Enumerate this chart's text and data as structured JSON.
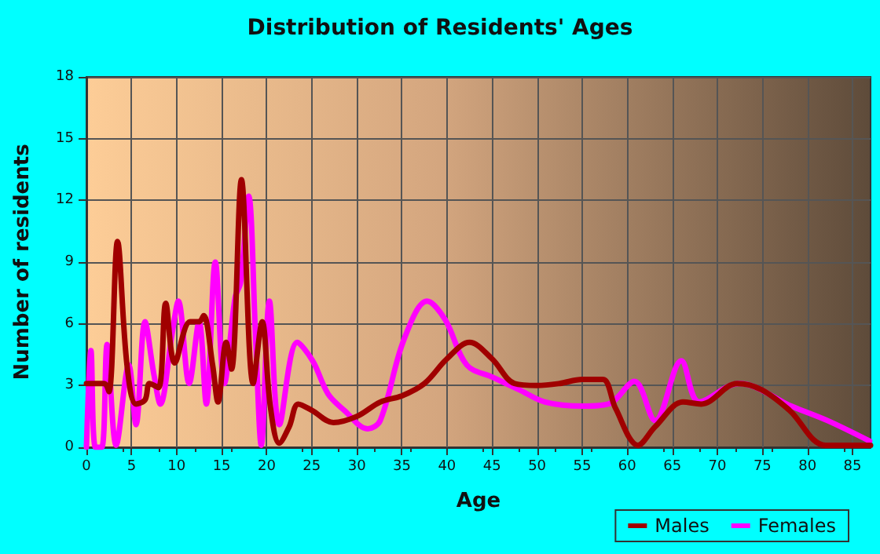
{
  "chart_data": {
    "type": "line",
    "title": "Distribution of Residents' Ages",
    "xlabel": "Age",
    "ylabel": "Number of residents",
    "xlim": [
      0,
      87
    ],
    "xticks": [
      0,
      5,
      10,
      15,
      20,
      25,
      30,
      35,
      40,
      45,
      50,
      55,
      60,
      65,
      70,
      75,
      80,
      85
    ],
    "ylim": [
      0,
      18
    ],
    "yticks": [
      0,
      3,
      6,
      9,
      12,
      15,
      18
    ],
    "grid": true,
    "legend": "bottom right",
    "marker": "none",
    "line_style": "solid",
    "series": [
      {
        "name": "Males",
        "color": "#a00000",
        "x": [
          0,
          1,
          2,
          2.5,
          3.45,
          4.5,
          5.5,
          6.5,
          7,
          8,
          8.8,
          9.8,
          11.5,
          12.5,
          13,
          14,
          14.6,
          15.5,
          16.1,
          17.2,
          18.5,
          19.5,
          20.4,
          21.4,
          22.5,
          23.5,
          25,
          27.4,
          30,
          32.6,
          35,
          37.5,
          40,
          42.5,
          45,
          47.5,
          50,
          52.5,
          55,
          57.3,
          58.7,
          61.2,
          63.1,
          66.2,
          68.2,
          72.2,
          74.9,
          78,
          82,
          87
        ],
        "values": [
          3.1,
          3.1,
          3.1,
          2.7,
          10,
          4,
          2.1,
          2.3,
          3.1,
          2.9,
          7,
          4.1,
          6.1,
          6.1,
          6.4,
          4,
          2.2,
          5.1,
          3.8,
          13,
          3.1,
          6.1,
          2,
          0.2,
          1,
          2.1,
          1.8,
          1.2,
          1.5,
          2.2,
          2.5,
          3.1,
          4.3,
          5.1,
          4.3,
          3.1,
          3,
          3.1,
          3.3,
          3.3,
          1.9,
          0.1,
          1,
          2.2,
          2.1,
          3.1,
          2.8,
          1.8,
          0.1,
          0.1
        ]
      },
      {
        "name": "Females",
        "color": "#ff00ff",
        "x": [
          0,
          0.5,
          1,
          1.7,
          2.3,
          3.3,
          4.7,
          5.5,
          6.5,
          7.5,
          8.2,
          9.5,
          10.2,
          11.4,
          12.5,
          13.3,
          14.3,
          15.3,
          16.5,
          17.1,
          18,
          18.8,
          19.4,
          20.3,
          21.4,
          23.4,
          25.1,
          26.8,
          28.6,
          31.2,
          32.6,
          35.2,
          37.8,
          39.8,
          42.2,
          45.1,
          48,
          50.9,
          55,
          57.9,
          60.8,
          63.1,
          66,
          68,
          72.4,
          78.2,
          82.2,
          86.9
        ],
        "values": [
          0,
          4.7,
          0,
          0,
          5,
          0.1,
          4,
          1.1,
          6.1,
          3.5,
          2.1,
          5.5,
          7.1,
          3.1,
          6.1,
          2.1,
          9,
          3.1,
          7.3,
          8,
          12.2,
          5,
          0.1,
          7.1,
          1.1,
          5.1,
          4.2,
          2.6,
          1.8,
          0.9,
          1.3,
          5.2,
          7.1,
          6.2,
          4,
          3.4,
          2.8,
          2.2,
          2,
          2.1,
          3.2,
          1.3,
          4.2,
          2.2,
          3.1,
          2,
          1.3,
          0.3
        ]
      }
    ]
  }
}
